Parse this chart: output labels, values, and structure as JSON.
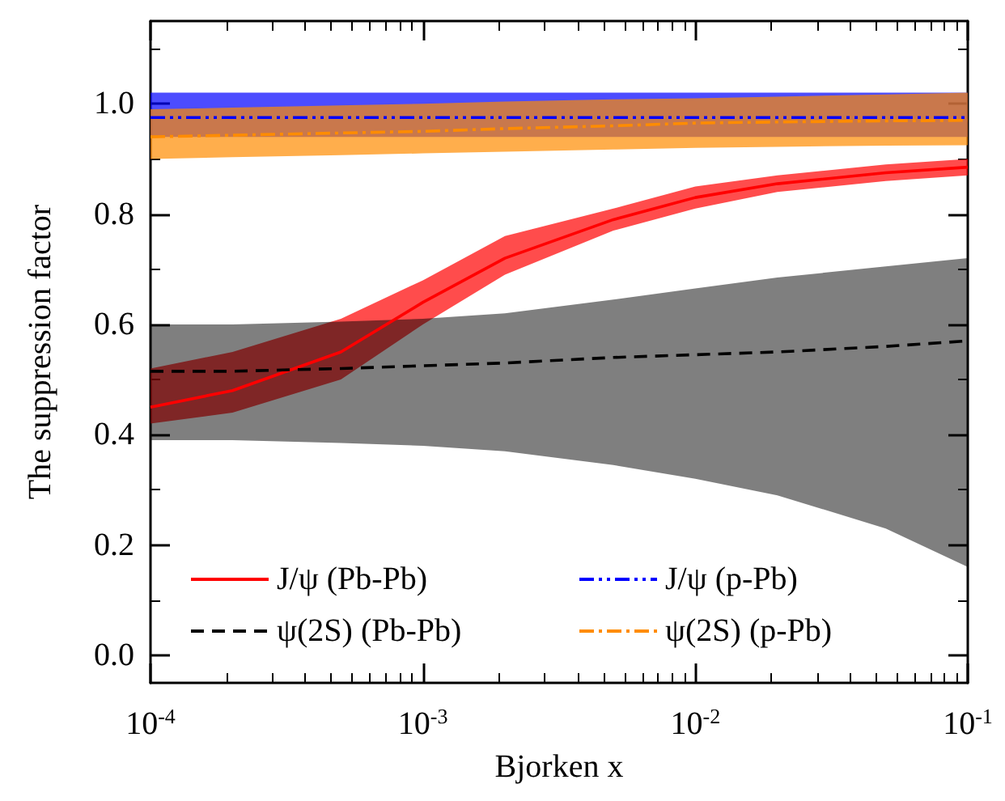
{
  "chart_data": {
    "type": "line",
    "xlabel": "Bjorken x",
    "ylabel": "The suppression factor",
    "log": "x",
    "xlim": [
      0.0001,
      0.1
    ],
    "xticks": [
      {
        "value": 0.0001,
        "label": "10$^{-4}$"
      },
      {
        "value": 0.001,
        "label": "10$^{-3}$"
      },
      {
        "value": 0.01,
        "label": "10$^{-2}$"
      },
      {
        "value": 0.1,
        "label": "10$^{-1}$"
      }
    ],
    "ylim": [
      -0.05,
      1.15
    ],
    "yticks": [
      {
        "value": 0,
        "label": "0.0"
      },
      0.2,
      0.4,
      0.6,
      0.8,
      {
        "value": 1,
        "label": "1.0"
      }
    ],
    "grid": false,
    "legend": "bottom",
    "marker": "none",
    "x": [
      0.0001,
      0.0002,
      0.0005,
      0.001,
      0.002,
      0.005,
      0.01,
      0.02,
      0.05,
      0.1
    ],
    "series": [
      {
        "name": "J/ψ (Pb-Pb)",
        "color": "#ff0000",
        "line_style": "solid",
        "values": [
          0.45,
          0.48,
          0.55,
          0.64,
          0.72,
          0.79,
          0.83,
          0.855,
          0.875,
          0.885
        ],
        "lower": [
          0.42,
          0.44,
          0.5,
          0.6,
          0.69,
          0.77,
          0.81,
          0.84,
          0.86,
          0.87
        ],
        "upper": [
          0.52,
          0.55,
          0.61,
          0.68,
          0.76,
          0.81,
          0.85,
          0.87,
          0.89,
          0.9
        ]
      },
      {
        "name": "ψ(2S) (Pb-Pb)",
        "color": "#000000",
        "line_style": "dashed",
        "values": [
          0.515,
          0.515,
          0.52,
          0.525,
          0.53,
          0.54,
          0.545,
          0.55,
          0.56,
          0.57
        ],
        "lower": [
          0.39,
          0.39,
          0.385,
          0.38,
          0.37,
          0.345,
          0.32,
          0.29,
          0.23,
          0.16
        ],
        "upper": [
          0.6,
          0.6,
          0.605,
          0.61,
          0.62,
          0.645,
          0.665,
          0.685,
          0.705,
          0.72
        ]
      },
      {
        "name": "J/ψ (p-Pb)",
        "color": "#0000ff",
        "line_style": "dashdotdot",
        "values": [
          0.975,
          0.975,
          0.975,
          0.975,
          0.975,
          0.975,
          0.975,
          0.975,
          0.975,
          0.975
        ],
        "lower": [
          0.94,
          0.94,
          0.94,
          0.94,
          0.94,
          0.94,
          0.94,
          0.94,
          0.94,
          0.94
        ],
        "upper": [
          1.02,
          1.02,
          1.02,
          1.02,
          1.02,
          1.02,
          1.02,
          1.02,
          1.02,
          1.02
        ]
      },
      {
        "name": "ψ(2S) (p-Pb)",
        "color": "#ff8c00",
        "line_style": "dashdot",
        "values": [
          0.94,
          0.943,
          0.947,
          0.95,
          0.955,
          0.96,
          0.965,
          0.967,
          0.969,
          0.97
        ],
        "lower": [
          0.9,
          0.903,
          0.907,
          0.91,
          0.913,
          0.917,
          0.92,
          0.922,
          0.924,
          0.925
        ],
        "upper": [
          0.99,
          0.993,
          0.997,
          1.0,
          1.004,
          1.008,
          1.01,
          1.013,
          1.017,
          1.02
        ]
      }
    ]
  }
}
